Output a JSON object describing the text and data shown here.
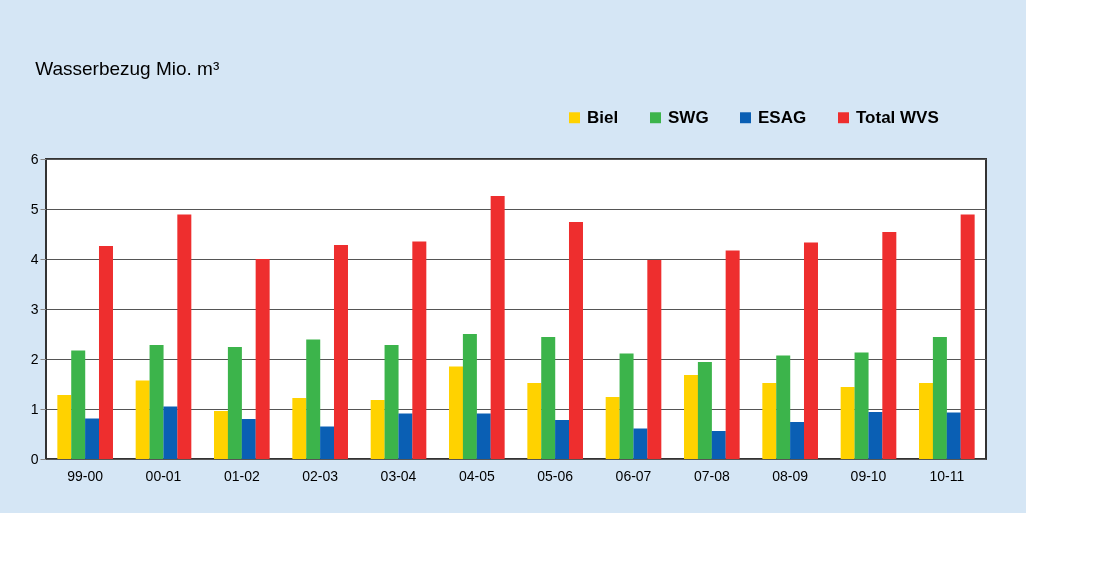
{
  "chart_data": {
    "type": "bar",
    "title": "Wasserbezug Mio. m³",
    "categories": [
      "99-00",
      "00-01",
      "01-02",
      "02-03",
      "03-04",
      "04-05",
      "05-06",
      "06-07",
      "07-08",
      "08-09",
      "09-10",
      "10-11"
    ],
    "series": [
      {
        "name": "Biel",
        "color": "#ffd200",
        "values": [
          1.28,
          1.57,
          0.96,
          1.22,
          1.18,
          1.85,
          1.52,
          1.24,
          1.68,
          1.52,
          1.44,
          1.52
        ]
      },
      {
        "name": "SWG",
        "color": "#3cb44b",
        "values": [
          2.17,
          2.28,
          2.24,
          2.39,
          2.28,
          2.5,
          2.44,
          2.11,
          1.94,
          2.07,
          2.13,
          2.44
        ]
      },
      {
        "name": "ESAG",
        "color": "#0a5fb4",
        "values": [
          0.81,
          1.05,
          0.8,
          0.65,
          0.91,
          0.91,
          0.78,
          0.61,
          0.56,
          0.74,
          0.94,
          0.93
        ]
      },
      {
        "name": "Total WVS",
        "color": "#ee2e2e",
        "values": [
          4.26,
          4.89,
          4.0,
          4.28,
          4.35,
          5.26,
          4.74,
          3.98,
          4.17,
          4.33,
          4.54,
          4.89
        ]
      }
    ],
    "ylim": [
      0,
      6
    ],
    "yticks": [
      0,
      1,
      2,
      3,
      4,
      5,
      6
    ],
    "grid": "y",
    "legend": "top right"
  }
}
